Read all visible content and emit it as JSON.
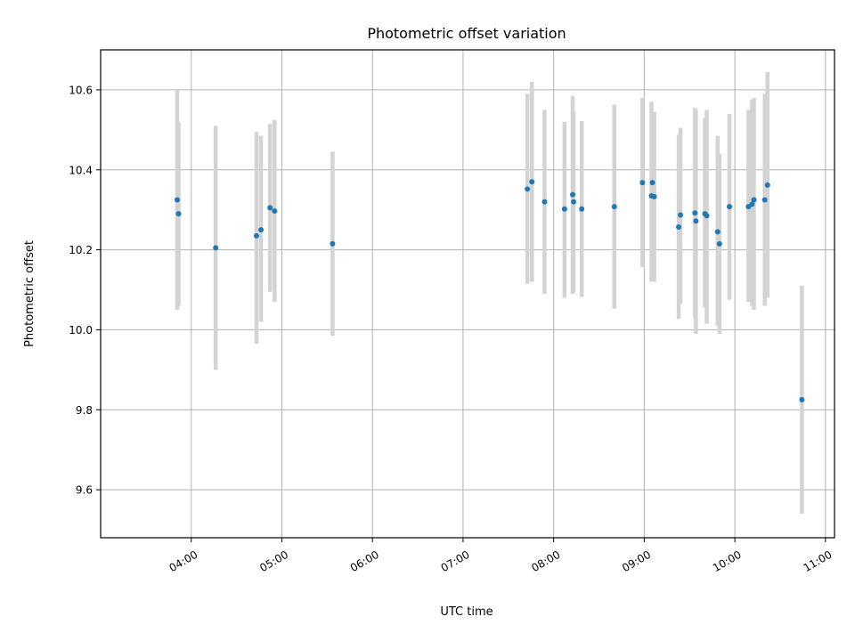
{
  "chart_data": {
    "type": "scatter",
    "title": "Photometric offset variation",
    "xlabel": "UTC time",
    "ylabel": "Photometric offset",
    "grid": true,
    "legend": "none",
    "x_unit": "UTC hours",
    "xlim": [
      3.0,
      11.1
    ],
    "ylim": [
      9.48,
      10.7
    ],
    "x_ticks": [
      4,
      5,
      6,
      7,
      8,
      9,
      10,
      11
    ],
    "x_tick_labels": [
      "04:00",
      "05:00",
      "06:00",
      "07:00",
      "08:00",
      "09:00",
      "10:00",
      "11:00"
    ],
    "y_ticks": [
      9.6,
      9.8,
      10.0,
      10.2,
      10.4,
      10.6
    ],
    "y_tick_labels": [
      "9.6",
      "9.8",
      "10.0",
      "10.2",
      "10.4",
      "10.6"
    ],
    "point_color": "#1f77b4",
    "errorbar_color": "#d3d3d3",
    "series": [
      {
        "points": [
          {
            "x": 3.845,
            "y": 10.325,
            "lo": 10.05,
            "hi": 10.6
          },
          {
            "x": 3.86,
            "y": 10.29,
            "lo": 10.06,
            "hi": 10.52
          },
          {
            "x": 4.27,
            "y": 10.205,
            "lo": 9.9,
            "hi": 10.51
          },
          {
            "x": 4.72,
            "y": 10.235,
            "lo": 9.965,
            "hi": 10.495
          },
          {
            "x": 4.77,
            "y": 10.25,
            "lo": 10.02,
            "hi": 10.485
          },
          {
            "x": 4.87,
            "y": 10.305,
            "lo": 10.095,
            "hi": 10.515
          },
          {
            "x": 4.92,
            "y": 10.297,
            "lo": 10.07,
            "hi": 10.525
          },
          {
            "x": 5.56,
            "y": 10.215,
            "lo": 9.985,
            "hi": 10.445
          },
          {
            "x": 7.71,
            "y": 10.352,
            "lo": 10.115,
            "hi": 10.59
          },
          {
            "x": 7.76,
            "y": 10.37,
            "lo": 10.12,
            "hi": 10.62
          },
          {
            "x": 7.9,
            "y": 10.32,
            "lo": 10.09,
            "hi": 10.55
          },
          {
            "x": 8.12,
            "y": 10.302,
            "lo": 10.08,
            "hi": 10.52
          },
          {
            "x": 8.21,
            "y": 10.338,
            "lo": 10.09,
            "hi": 10.585
          },
          {
            "x": 8.22,
            "y": 10.32,
            "lo": 10.095,
            "hi": 10.545
          },
          {
            "x": 8.31,
            "y": 10.302,
            "lo": 10.082,
            "hi": 10.522
          },
          {
            "x": 8.67,
            "y": 10.308,
            "lo": 10.053,
            "hi": 10.563
          },
          {
            "x": 8.98,
            "y": 10.368,
            "lo": 10.157,
            "hi": 10.58
          },
          {
            "x": 9.08,
            "y": 10.335,
            "lo": 10.12,
            "hi": 10.57
          },
          {
            "x": 9.09,
            "y": 10.368,
            "lo": 10.125,
            "hi": 10.545
          },
          {
            "x": 9.11,
            "y": 10.333,
            "lo": 10.12,
            "hi": 10.545
          },
          {
            "x": 9.38,
            "y": 10.257,
            "lo": 10.027,
            "hi": 10.487
          },
          {
            "x": 9.4,
            "y": 10.287,
            "lo": 10.065,
            "hi": 10.505
          },
          {
            "x": 9.56,
            "y": 10.292,
            "lo": 10.03,
            "hi": 10.555
          },
          {
            "x": 9.57,
            "y": 10.272,
            "lo": 9.99,
            "hi": 10.55
          },
          {
            "x": 9.67,
            "y": 10.29,
            "lo": 10.055,
            "hi": 10.53
          },
          {
            "x": 9.69,
            "y": 10.285,
            "lo": 10.015,
            "hi": 10.55
          },
          {
            "x": 9.81,
            "y": 10.245,
            "lo": 10.01,
            "hi": 10.485
          },
          {
            "x": 9.83,
            "y": 10.215,
            "lo": 9.99,
            "hi": 10.44
          },
          {
            "x": 9.94,
            "y": 10.308,
            "lo": 10.075,
            "hi": 10.54
          },
          {
            "x": 10.15,
            "y": 10.308,
            "lo": 10.07,
            "hi": 10.55
          },
          {
            "x": 10.19,
            "y": 10.314,
            "lo": 10.06,
            "hi": 10.575
          },
          {
            "x": 10.21,
            "y": 10.325,
            "lo": 10.05,
            "hi": 10.58
          },
          {
            "x": 10.33,
            "y": 10.325,
            "lo": 10.06,
            "hi": 10.59
          },
          {
            "x": 10.36,
            "y": 10.362,
            "lo": 10.08,
            "hi": 10.645
          },
          {
            "x": 10.74,
            "y": 9.825,
            "lo": 9.54,
            "hi": 10.11
          }
        ]
      }
    ]
  }
}
